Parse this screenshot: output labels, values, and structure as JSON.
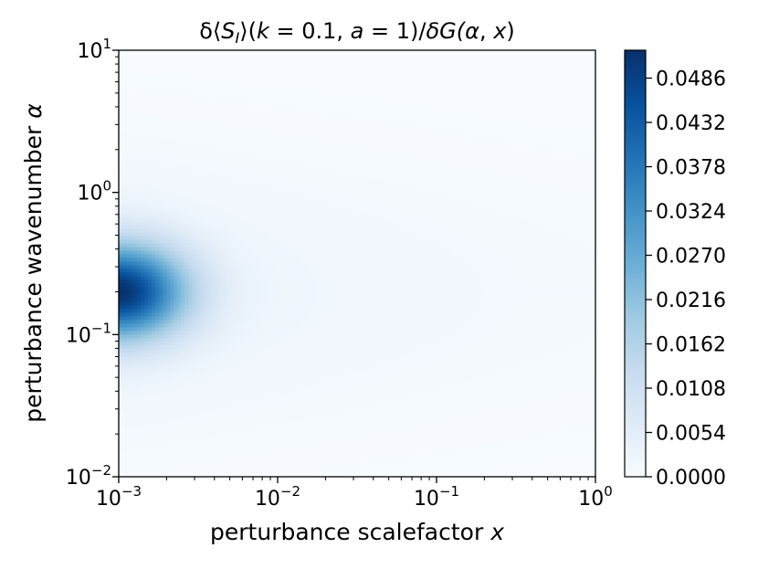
{
  "chart_data": {
    "type": "heatmap",
    "title": "δ⟨S_I⟩(k = 0.1, a = 1)/δG(α, x)",
    "title_parts": {
      "prefix": "δ⟨",
      "s": "S",
      "sub": "I",
      "mid": "⟩(",
      "k": "k",
      "k_eq": " = 0.1, ",
      "a": "a",
      "a_eq": " = 1)/",
      "dg": "δG(",
      "alpha": "α",
      "comma": ", ",
      "x": "x",
      "close": ")"
    },
    "xlabel": "perturbance scalefactor x",
    "xlabel_text": "perturbance scalefactor ",
    "xlabel_var": "x",
    "ylabel": "perturbance wavenumber α",
    "ylabel_text": "perturbance wavenumber ",
    "ylabel_var": "α",
    "x_scale": "log",
    "y_scale": "log",
    "xlim": [
      0.001,
      1
    ],
    "ylim": [
      0.01,
      10
    ],
    "x_ticks": [
      {
        "value": 0.001,
        "base": "10",
        "exp": "−3"
      },
      {
        "value": 0.01,
        "base": "10",
        "exp": "−2"
      },
      {
        "value": 0.1,
        "base": "10",
        "exp": "−1"
      },
      {
        "value": 1,
        "base": "10",
        "exp": "0"
      }
    ],
    "y_ticks": [
      {
        "value": 0.01,
        "base": "10",
        "exp": "−2"
      },
      {
        "value": 0.1,
        "base": "10",
        "exp": "−1"
      },
      {
        "value": 1,
        "base": "10",
        "exp": "0"
      },
      {
        "value": 10,
        "base": "10",
        "exp": "1"
      }
    ],
    "peak": {
      "x": 0.001,
      "y": 0.2,
      "value": 0.052
    },
    "colormap": "Blues",
    "colorbar": {
      "min": 0.0,
      "max": 0.052,
      "ticks": [
        "0.0000",
        "0.0054",
        "0.0108",
        "0.0162",
        "0.0216",
        "0.0270",
        "0.0324",
        "0.0378",
        "0.0432",
        "0.0486"
      ]
    },
    "grid": false,
    "legend": "none"
  }
}
